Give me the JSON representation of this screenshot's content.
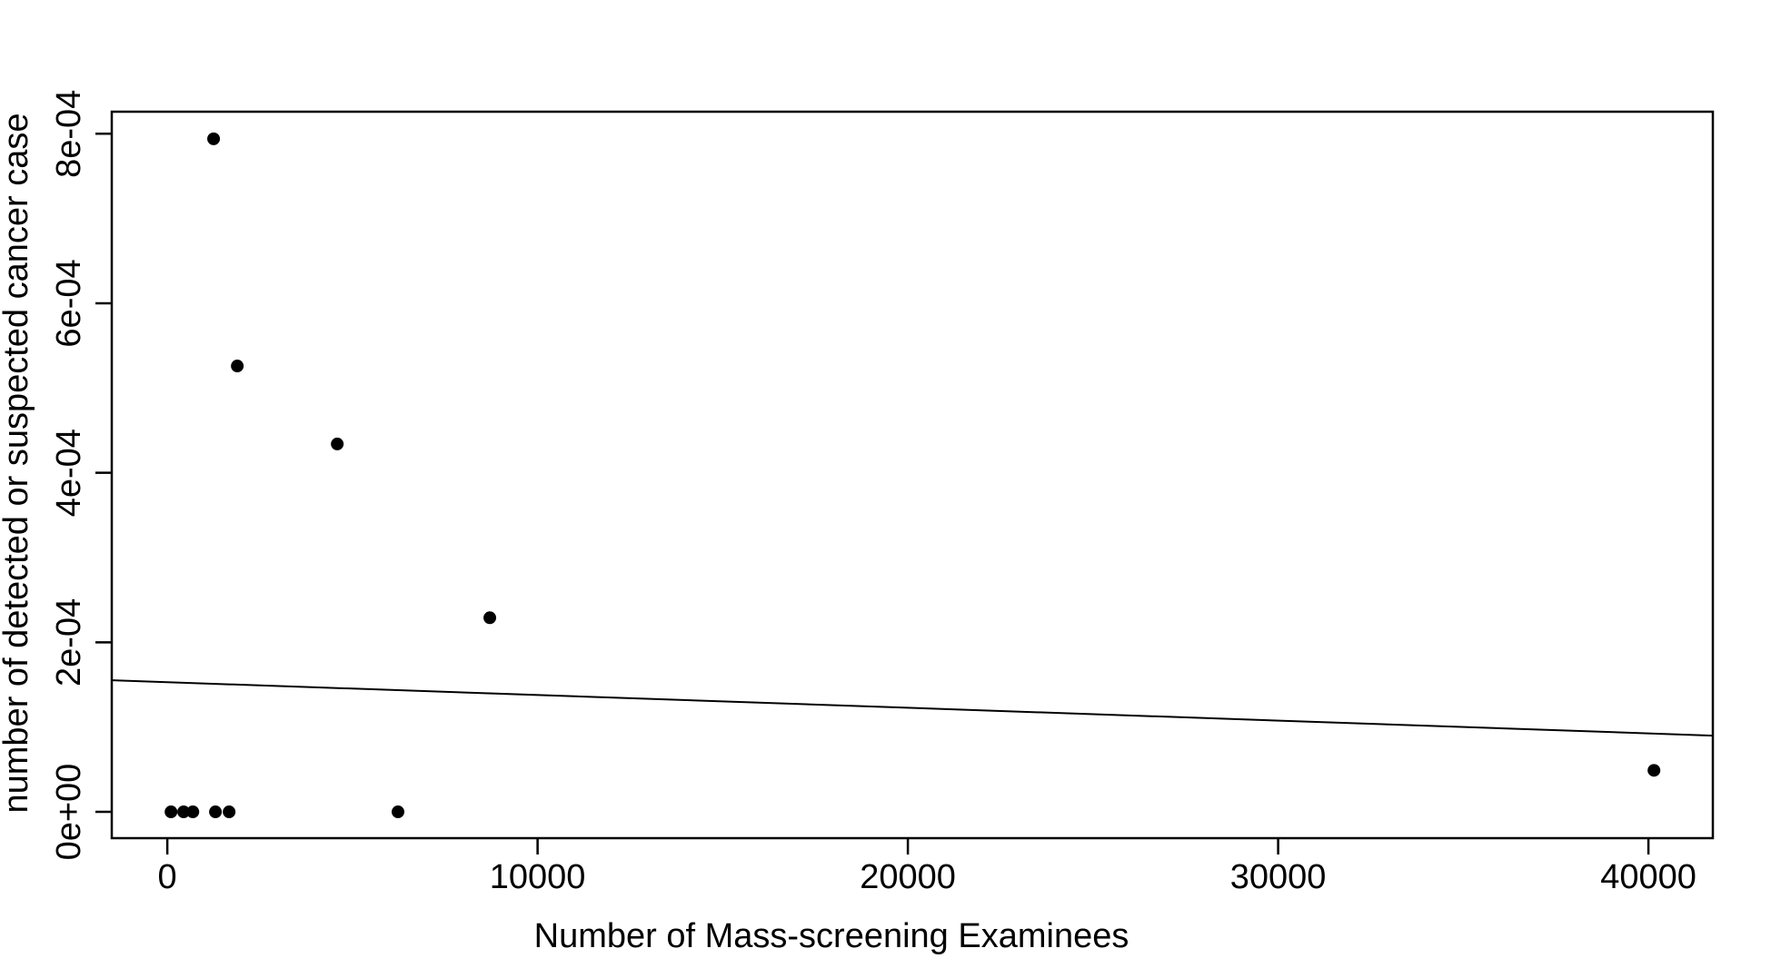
{
  "figure": {
    "background": "#ffffff",
    "foreground": "#000000"
  },
  "chart_data": {
    "type": "scatter",
    "title": "",
    "xlabel": "Number of Mass-screening Examinees",
    "ylabel": "number of detected or suspected cancer case",
    "xlim": [
      -1500,
      41740
    ],
    "ylim": [
      -3.1e-05,
      0.000826
    ],
    "x_ticks": {
      "values": [
        0,
        10000,
        20000,
        30000,
        40000
      ],
      "labels": [
        "0",
        "10000",
        "20000",
        "30000",
        "40000"
      ]
    },
    "y_ticks": {
      "values": [
        0,
        0.0002,
        0.0004,
        0.0006,
        0.0008
      ],
      "labels": [
        "0e+00",
        "2e-04",
        "4e-04",
        "6e-04",
        "8e-04"
      ]
    },
    "points": [
      {
        "x": 100,
        "y": 0
      },
      {
        "x": 440,
        "y": 0
      },
      {
        "x": 690,
        "y": 0
      },
      {
        "x": 1250,
        "y": 0.000794
      },
      {
        "x": 1300,
        "y": 0
      },
      {
        "x": 1670,
        "y": 0
      },
      {
        "x": 1890,
        "y": 0.000526
      },
      {
        "x": 4590,
        "y": 0.000434
      },
      {
        "x": 6230,
        "y": 0
      },
      {
        "x": 8710,
        "y": 0.000229
      },
      {
        "x": 40150,
        "y": 4.9e-05
      }
    ],
    "regression_line": {
      "intercept": 0.000153,
      "slope": -1.51e-09,
      "x_start": -1500,
      "x_end": 41740
    },
    "point_color": "#000000",
    "line_color": "#000000",
    "axis_color": "#000000",
    "grid": false,
    "legend": null
  }
}
